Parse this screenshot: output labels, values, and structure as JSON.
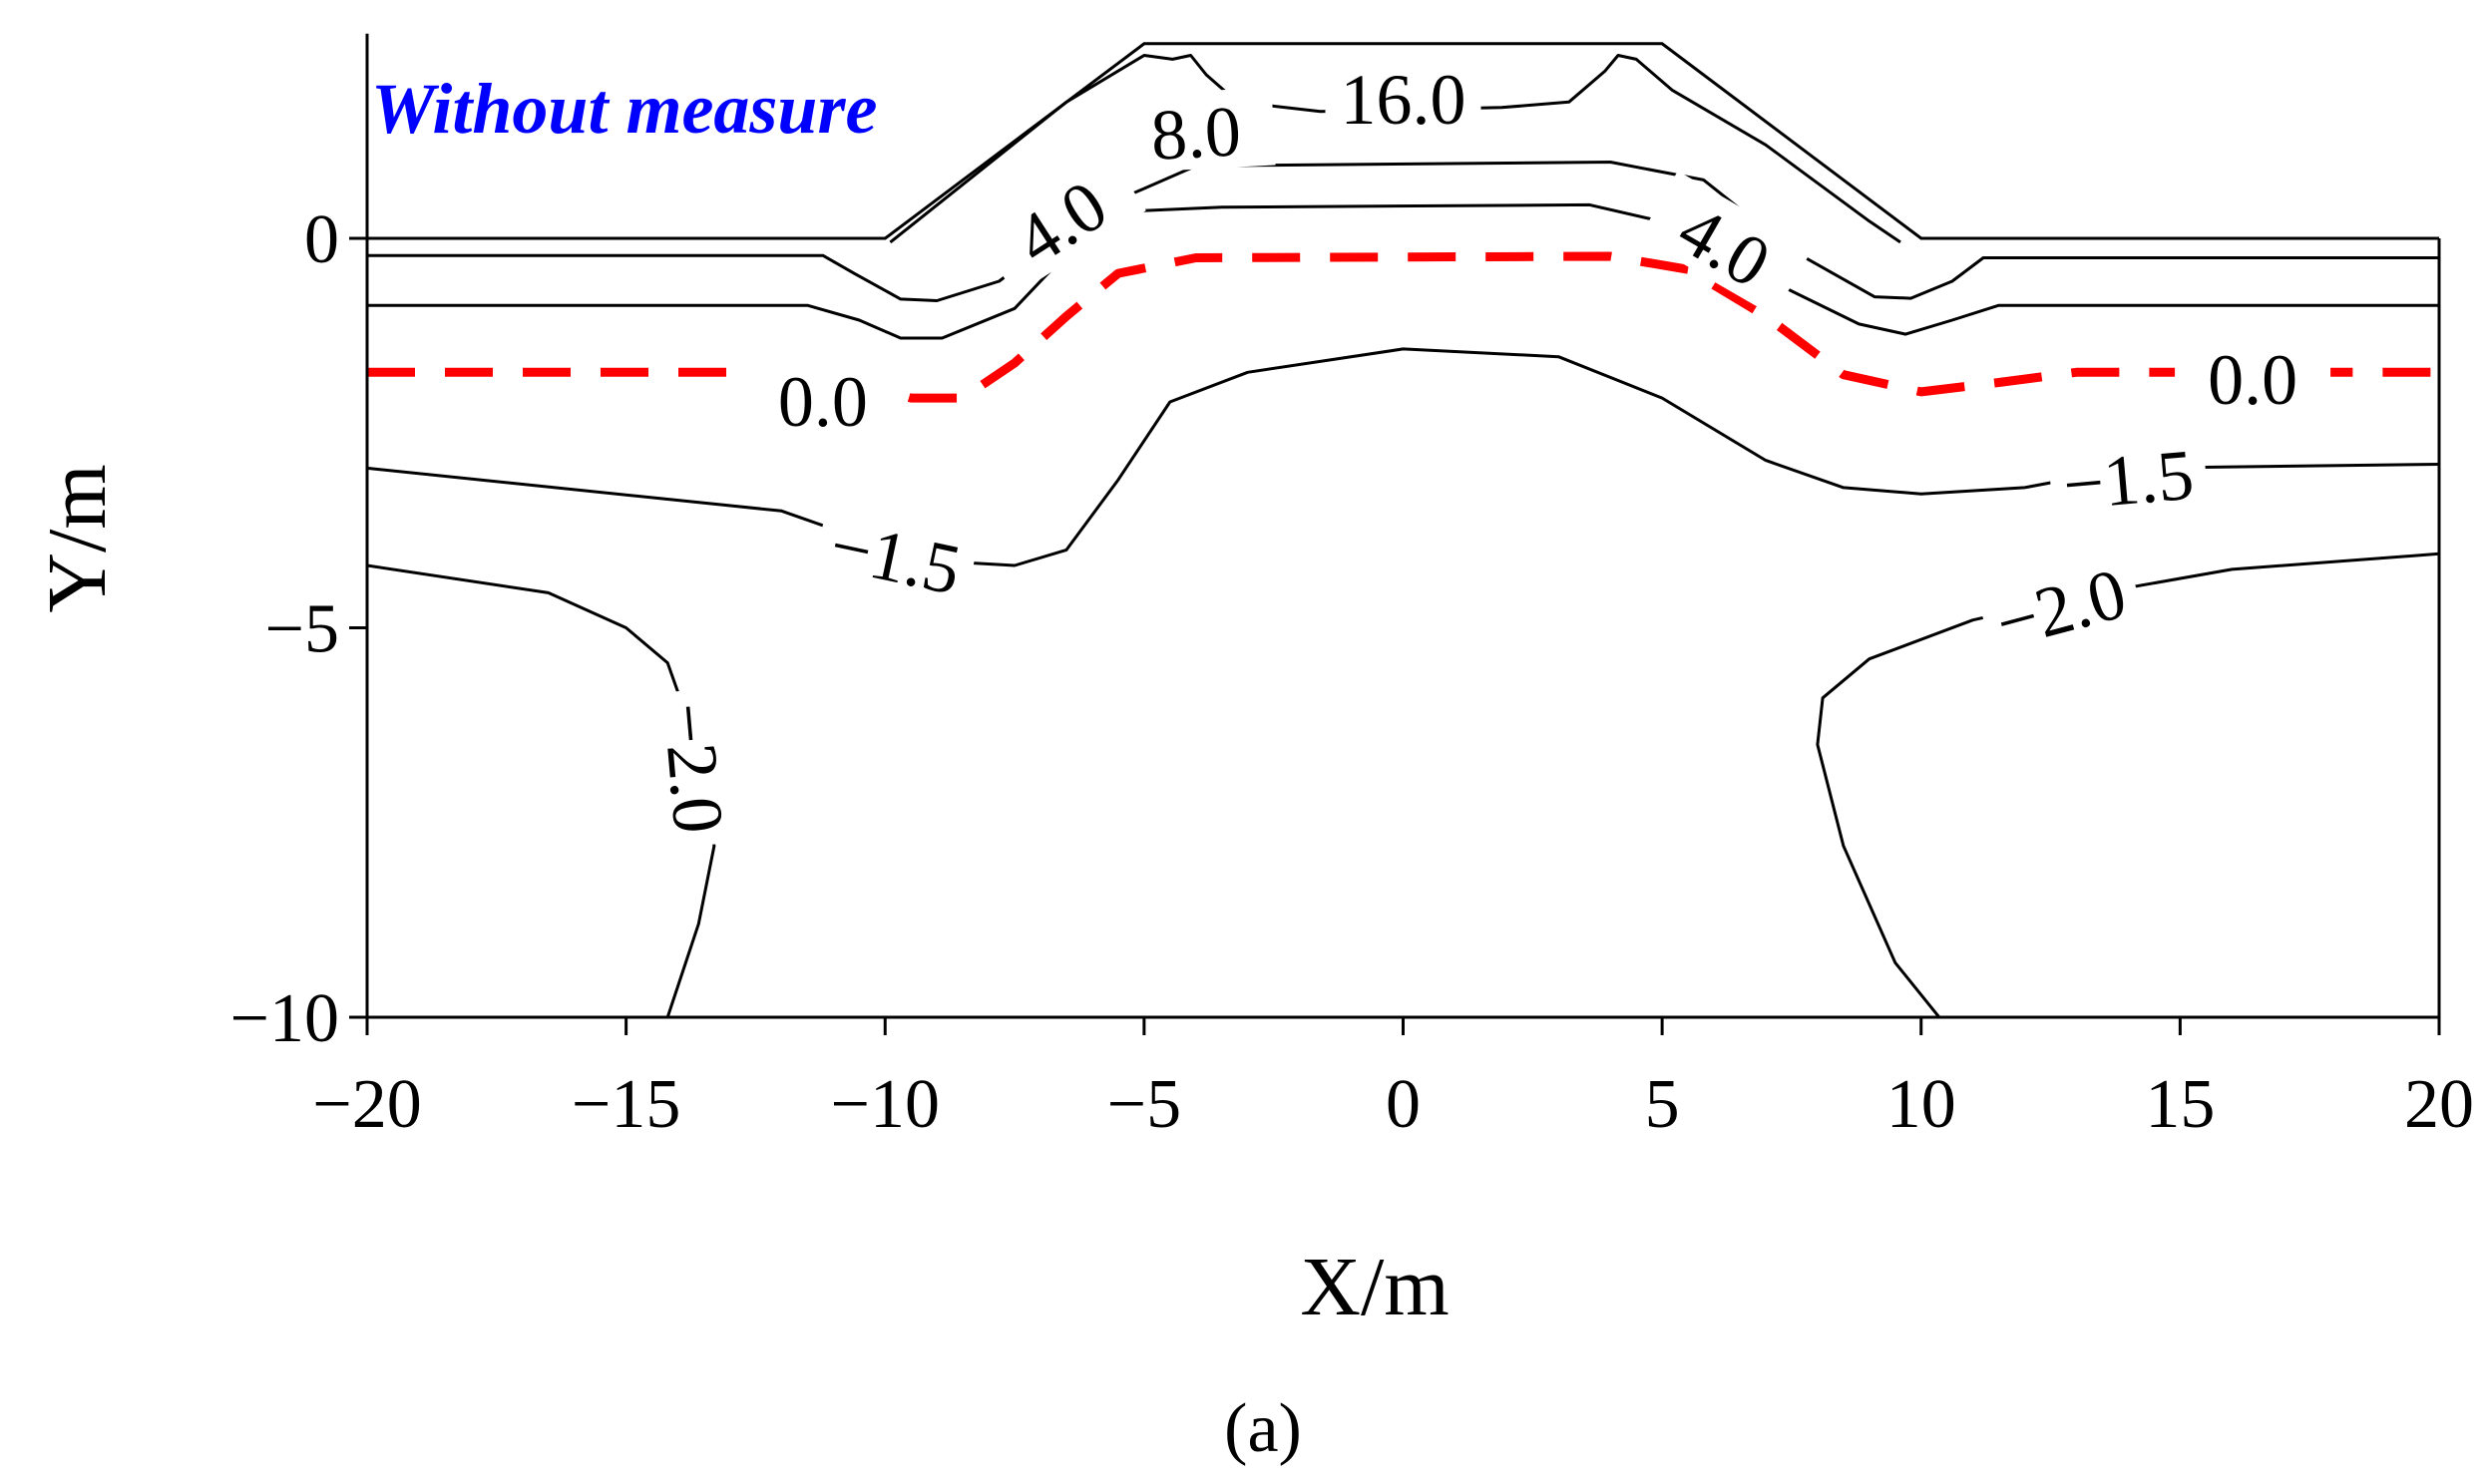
{
  "chart_data": {
    "type": "contour",
    "title": "",
    "annotation": "Without measure",
    "xlabel": "X/m",
    "ylabel": "Y/m",
    "xlim": [
      -20,
      20
    ],
    "ylim": [
      -10,
      2.5
    ],
    "x_ticks": [
      -20,
      -15,
      -10,
      -5,
      0,
      5,
      10,
      15,
      20
    ],
    "x_tick_labels": [
      "−20",
      "−15",
      "−10",
      "−5",
      "0",
      "5",
      "10",
      "15",
      "20"
    ],
    "y_ticks": [
      0,
      -5,
      -10
    ],
    "y_tick_labels": [
      "0",
      "−5",
      "−10"
    ],
    "caption": "(a)",
    "colors": {
      "zero_contour": "#ff0000",
      "contour": "#000000",
      "annotation": "#0000ff"
    },
    "boundary": [
      [
        -20,
        0
      ],
      [
        -10,
        0
      ],
      [
        -5,
        2.5
      ],
      [
        5,
        2.5
      ],
      [
        10,
        0
      ],
      [
        20,
        0
      ]
    ],
    "contours": [
      {
        "level": "16.0",
        "style": "solid",
        "points": [
          [
            -9.9,
            -0.05
          ],
          [
            -6.5,
            1.75
          ],
          [
            -5,
            2.35
          ],
          [
            -4.45,
            2.3
          ],
          [
            -4.1,
            2.35
          ],
          [
            -3.8,
            2.1
          ],
          [
            -3.2,
            1.75
          ],
          [
            -1.6,
            1.63
          ],
          [
            1.9,
            1.68
          ],
          [
            3.2,
            1.75
          ],
          [
            3.9,
            2.15
          ],
          [
            4.15,
            2.35
          ],
          [
            4.5,
            2.3
          ],
          [
            5.2,
            1.9
          ],
          [
            7,
            1.2
          ],
          [
            9,
            0.22
          ],
          [
            9.6,
            -0.05
          ]
        ]
      },
      {
        "level": "8.0",
        "style": "solid",
        "points": [
          [
            -20,
            -0.22
          ],
          [
            -11.2,
            -0.22
          ],
          [
            -10.6,
            -0.45
          ],
          [
            -9.7,
            -0.78
          ],
          [
            -9,
            -0.8
          ],
          [
            -7.8,
            -0.55
          ],
          [
            -6,
            0.35
          ],
          [
            -4,
            0.93
          ],
          [
            -2.5,
            0.94
          ],
          [
            4,
            0.98
          ],
          [
            5.8,
            0.75
          ],
          [
            7.5,
            -0.15
          ],
          [
            9.1,
            -0.75
          ],
          [
            9.8,
            -0.77
          ],
          [
            10.6,
            -0.55
          ],
          [
            11.2,
            -0.25
          ],
          [
            20,
            -0.25
          ]
        ]
      },
      {
        "level": "4.0",
        "style": "solid",
        "points": [
          [
            -20,
            -0.86
          ],
          [
            -11.5,
            -0.86
          ],
          [
            -10.5,
            -1.05
          ],
          [
            -9.7,
            -1.28
          ],
          [
            -8.9,
            -1.28
          ],
          [
            -7.5,
            -0.9
          ],
          [
            -6.5,
            -0.2
          ],
          [
            -5.2,
            0.35
          ],
          [
            -3.5,
            0.4
          ],
          [
            3.6,
            0.43
          ],
          [
            5.1,
            0.2
          ],
          [
            6.8,
            -0.45
          ],
          [
            8.8,
            -1.1
          ],
          [
            9.7,
            -1.23
          ],
          [
            10.6,
            -1.05
          ],
          [
            11.5,
            -0.86
          ],
          [
            20,
            -0.86
          ]
        ]
      },
      {
        "level": "0.0",
        "style": "dashed",
        "points": [
          [
            -20,
            -1.72
          ],
          [
            -12,
            -1.72
          ],
          [
            -10.5,
            -1.85
          ],
          [
            -9.5,
            -2.05
          ],
          [
            -8.5,
            -2.05
          ],
          [
            -7.5,
            -1.6
          ],
          [
            -6.5,
            -1.0
          ],
          [
            -5.5,
            -0.45
          ],
          [
            -4,
            -0.25
          ],
          [
            4,
            -0.23
          ],
          [
            5.5,
            -0.4
          ],
          [
            7,
            -1.0
          ],
          [
            8.5,
            -1.75
          ],
          [
            10,
            -1.97
          ],
          [
            11.5,
            -1.85
          ],
          [
            13,
            -1.72
          ],
          [
            20,
            -1.72
          ]
        ]
      },
      {
        "level": "-1.5",
        "style": "solid",
        "points": [
          [
            -20,
            -2.95
          ],
          [
            -12,
            -3.5
          ],
          [
            -10.5,
            -3.85
          ],
          [
            -8.8,
            -4.15
          ],
          [
            -7.5,
            -4.2
          ],
          [
            -6.5,
            -4.0
          ],
          [
            -5.5,
            -3.1
          ],
          [
            -4.5,
            -2.1
          ],
          [
            -3,
            -1.72
          ],
          [
            0,
            -1.42
          ],
          [
            3,
            -1.52
          ],
          [
            5,
            -2.05
          ],
          [
            7,
            -2.85
          ],
          [
            8.5,
            -3.2
          ],
          [
            10,
            -3.28
          ],
          [
            12,
            -3.2
          ],
          [
            14,
            -2.95
          ],
          [
            20,
            -2.9
          ]
        ]
      },
      {
        "level": "-2.0",
        "style": "solid",
        "points": [
          [
            -20,
            -4.2
          ],
          [
            -16.5,
            -4.55
          ],
          [
            -15,
            -5.0
          ],
          [
            -14.2,
            -5.45
          ],
          [
            -13.8,
            -6.2
          ],
          [
            -13.5,
            -7.0
          ],
          [
            -13.3,
            -7.8
          ],
          [
            -13.6,
            -8.8
          ],
          [
            -14.2,
            -10
          ]
        ],
        "points2": [
          [
            10.35,
            -10
          ],
          [
            9.5,
            -9.3
          ],
          [
            8.5,
            -7.8
          ],
          [
            8.0,
            -6.5
          ],
          [
            8.1,
            -5.9
          ],
          [
            9,
            -5.4
          ],
          [
            11,
            -4.9
          ],
          [
            13,
            -4.6
          ],
          [
            16,
            -4.25
          ],
          [
            20,
            -4.05
          ]
        ]
      }
    ]
  }
}
